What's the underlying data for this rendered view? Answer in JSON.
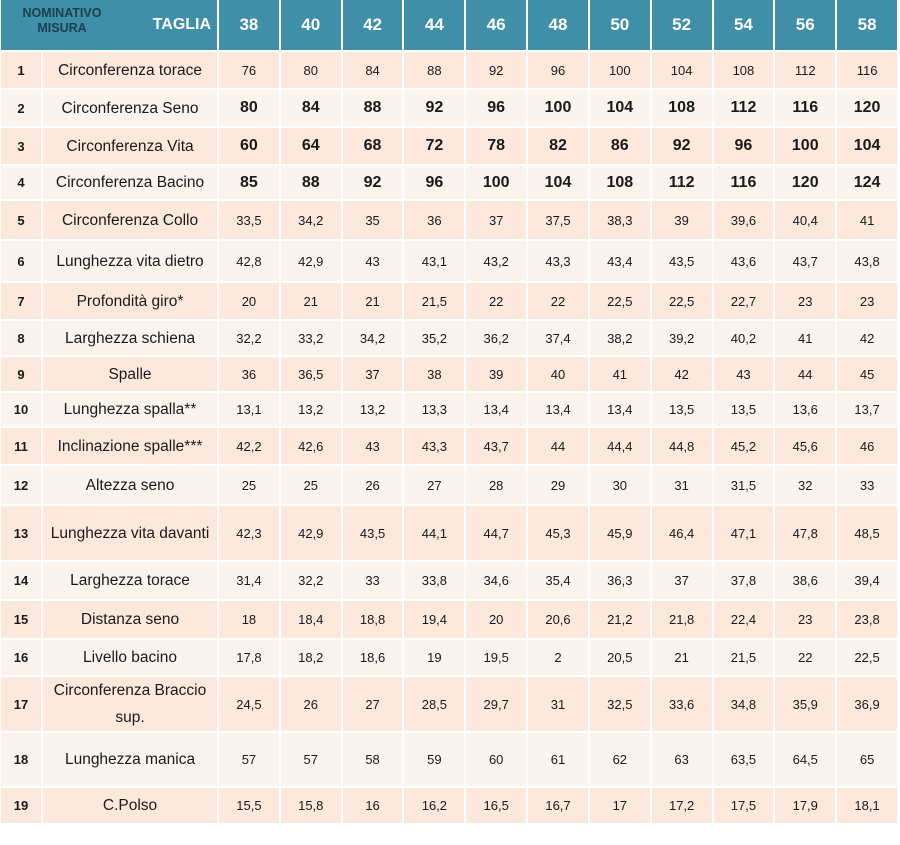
{
  "header": {
    "nominativo": "NOMINATIVO",
    "misura": "MISURA",
    "taglia": "TAGLIA",
    "sizes": [
      "38",
      "40",
      "42",
      "44",
      "46",
      "48",
      "50",
      "52",
      "54",
      "56",
      "58"
    ]
  },
  "rows": [
    {
      "num": "1",
      "name": "Circonferenza torace",
      "values": [
        "76",
        "80",
        "84",
        "88",
        "92",
        "96",
        "100",
        "104",
        "108",
        "112",
        "116"
      ]
    },
    {
      "num": "2",
      "name": "Circonferenza Seno",
      "values": [
        "80",
        "84",
        "88",
        "92",
        "96",
        "100",
        "104",
        "108",
        "112",
        "116",
        "120"
      ]
    },
    {
      "num": "3",
      "name": "Circonferenza  Vita",
      "values": [
        "60",
        "64",
        "68",
        "72",
        "78",
        "82",
        "86",
        "92",
        "96",
        "100",
        "104"
      ]
    },
    {
      "num": "4",
      "name": "Circonferenza  Bacino",
      "values": [
        "85",
        "88",
        "92",
        "96",
        "100",
        "104",
        "108",
        "112",
        "116",
        "120",
        "124"
      ]
    },
    {
      "num": "5",
      "name": "Circonferenza  Collo",
      "values": [
        "33,5",
        "34,2",
        "35",
        "36",
        "37",
        "37,5",
        "38,3",
        "39",
        "39,6",
        "40,4",
        "41"
      ]
    },
    {
      "num": "6",
      "name": "Lunghezza vita dietro",
      "values": [
        "42,8",
        "42,9",
        "43",
        "43,1",
        "43,2",
        "43,3",
        "43,4",
        "43,5",
        "43,6",
        "43,7",
        "43,8"
      ]
    },
    {
      "num": "7",
      "name": "Profondità  giro*",
      "values": [
        "20",
        "21",
        "21",
        "21,5",
        "22",
        "22",
        "22,5",
        "22,5",
        "22,7",
        "23",
        "23"
      ]
    },
    {
      "num": "8",
      "name": "Larghezza schiena",
      "values": [
        "32,2",
        "33,2",
        "34,2",
        "35,2",
        "36,2",
        "37,4",
        "38,2",
        "39,2",
        "40,2",
        "41",
        "42"
      ]
    },
    {
      "num": "9",
      "name": "Spalle",
      "values": [
        "36",
        "36,5",
        "37",
        "38",
        "39",
        "40",
        "41",
        "42",
        "43",
        "44",
        "45"
      ]
    },
    {
      "num": "10",
      "name": "Lunghezza spalla**",
      "values": [
        "13,1",
        "13,2",
        "13,2",
        "13,3",
        "13,4",
        "13,4",
        "13,4",
        "13,5",
        "13,5",
        "13,6",
        "13,7"
      ]
    },
    {
      "num": "11",
      "name": "Inclinazione spalle***",
      "values": [
        "42,2",
        "42,6",
        "43",
        "43,3",
        "43,7",
        "44",
        "44,4",
        "44,8",
        "45,2",
        "45,6",
        "46"
      ]
    },
    {
      "num": "12",
      "name": "Altezza seno",
      "values": [
        "25",
        "25",
        "26",
        "27",
        "28",
        "29",
        "30",
        "31",
        "31,5",
        "32",
        "33"
      ]
    },
    {
      "num": "13",
      "name": "Lunghezza vita davanti",
      "values": [
        "42,3",
        "42,9",
        "43,5",
        "44,1",
        "44,7",
        "45,3",
        "45,9",
        "46,4",
        "47,1",
        "47,8",
        "48,5"
      ]
    },
    {
      "num": "14",
      "name": "Larghezza torace",
      "values": [
        "31,4",
        "32,2",
        "33",
        "33,8",
        "34,6",
        "35,4",
        "36,3",
        "37",
        "37,8",
        "38,6",
        "39,4"
      ]
    },
    {
      "num": "15",
      "name": "Distanza seno",
      "values": [
        "18",
        "18,4",
        "18,8",
        "19,4",
        "20",
        "20,6",
        "21,2",
        "21,8",
        "22,4",
        "23",
        "23,8"
      ]
    },
    {
      "num": "16",
      "name": "Livello bacino",
      "values": [
        "17,8",
        "18,2",
        "18,6",
        "19",
        "19,5",
        "2",
        "20,5",
        "21",
        "21,5",
        "22",
        "22,5"
      ]
    },
    {
      "num": "17",
      "name": "Circonferenza  Braccio sup.",
      "values": [
        "24,5",
        "26",
        "27",
        "28,5",
        "29,7",
        "31",
        "32,5",
        "33,6",
        "34,8",
        "35,9",
        "36,9"
      ]
    },
    {
      "num": "18",
      "name": "Lunghezza manica",
      "values": [
        "57",
        "57",
        "58",
        "59",
        "60",
        "61",
        "62",
        "63",
        "63,5",
        "64,5",
        "65"
      ]
    },
    {
      "num": "19",
      "name": "C.Polso",
      "values": [
        "15,5",
        "15,8",
        "16",
        "16,2",
        "16,5",
        "16,7",
        "17",
        "17,2",
        "17,5",
        "17,9",
        "18,1"
      ]
    }
  ]
}
